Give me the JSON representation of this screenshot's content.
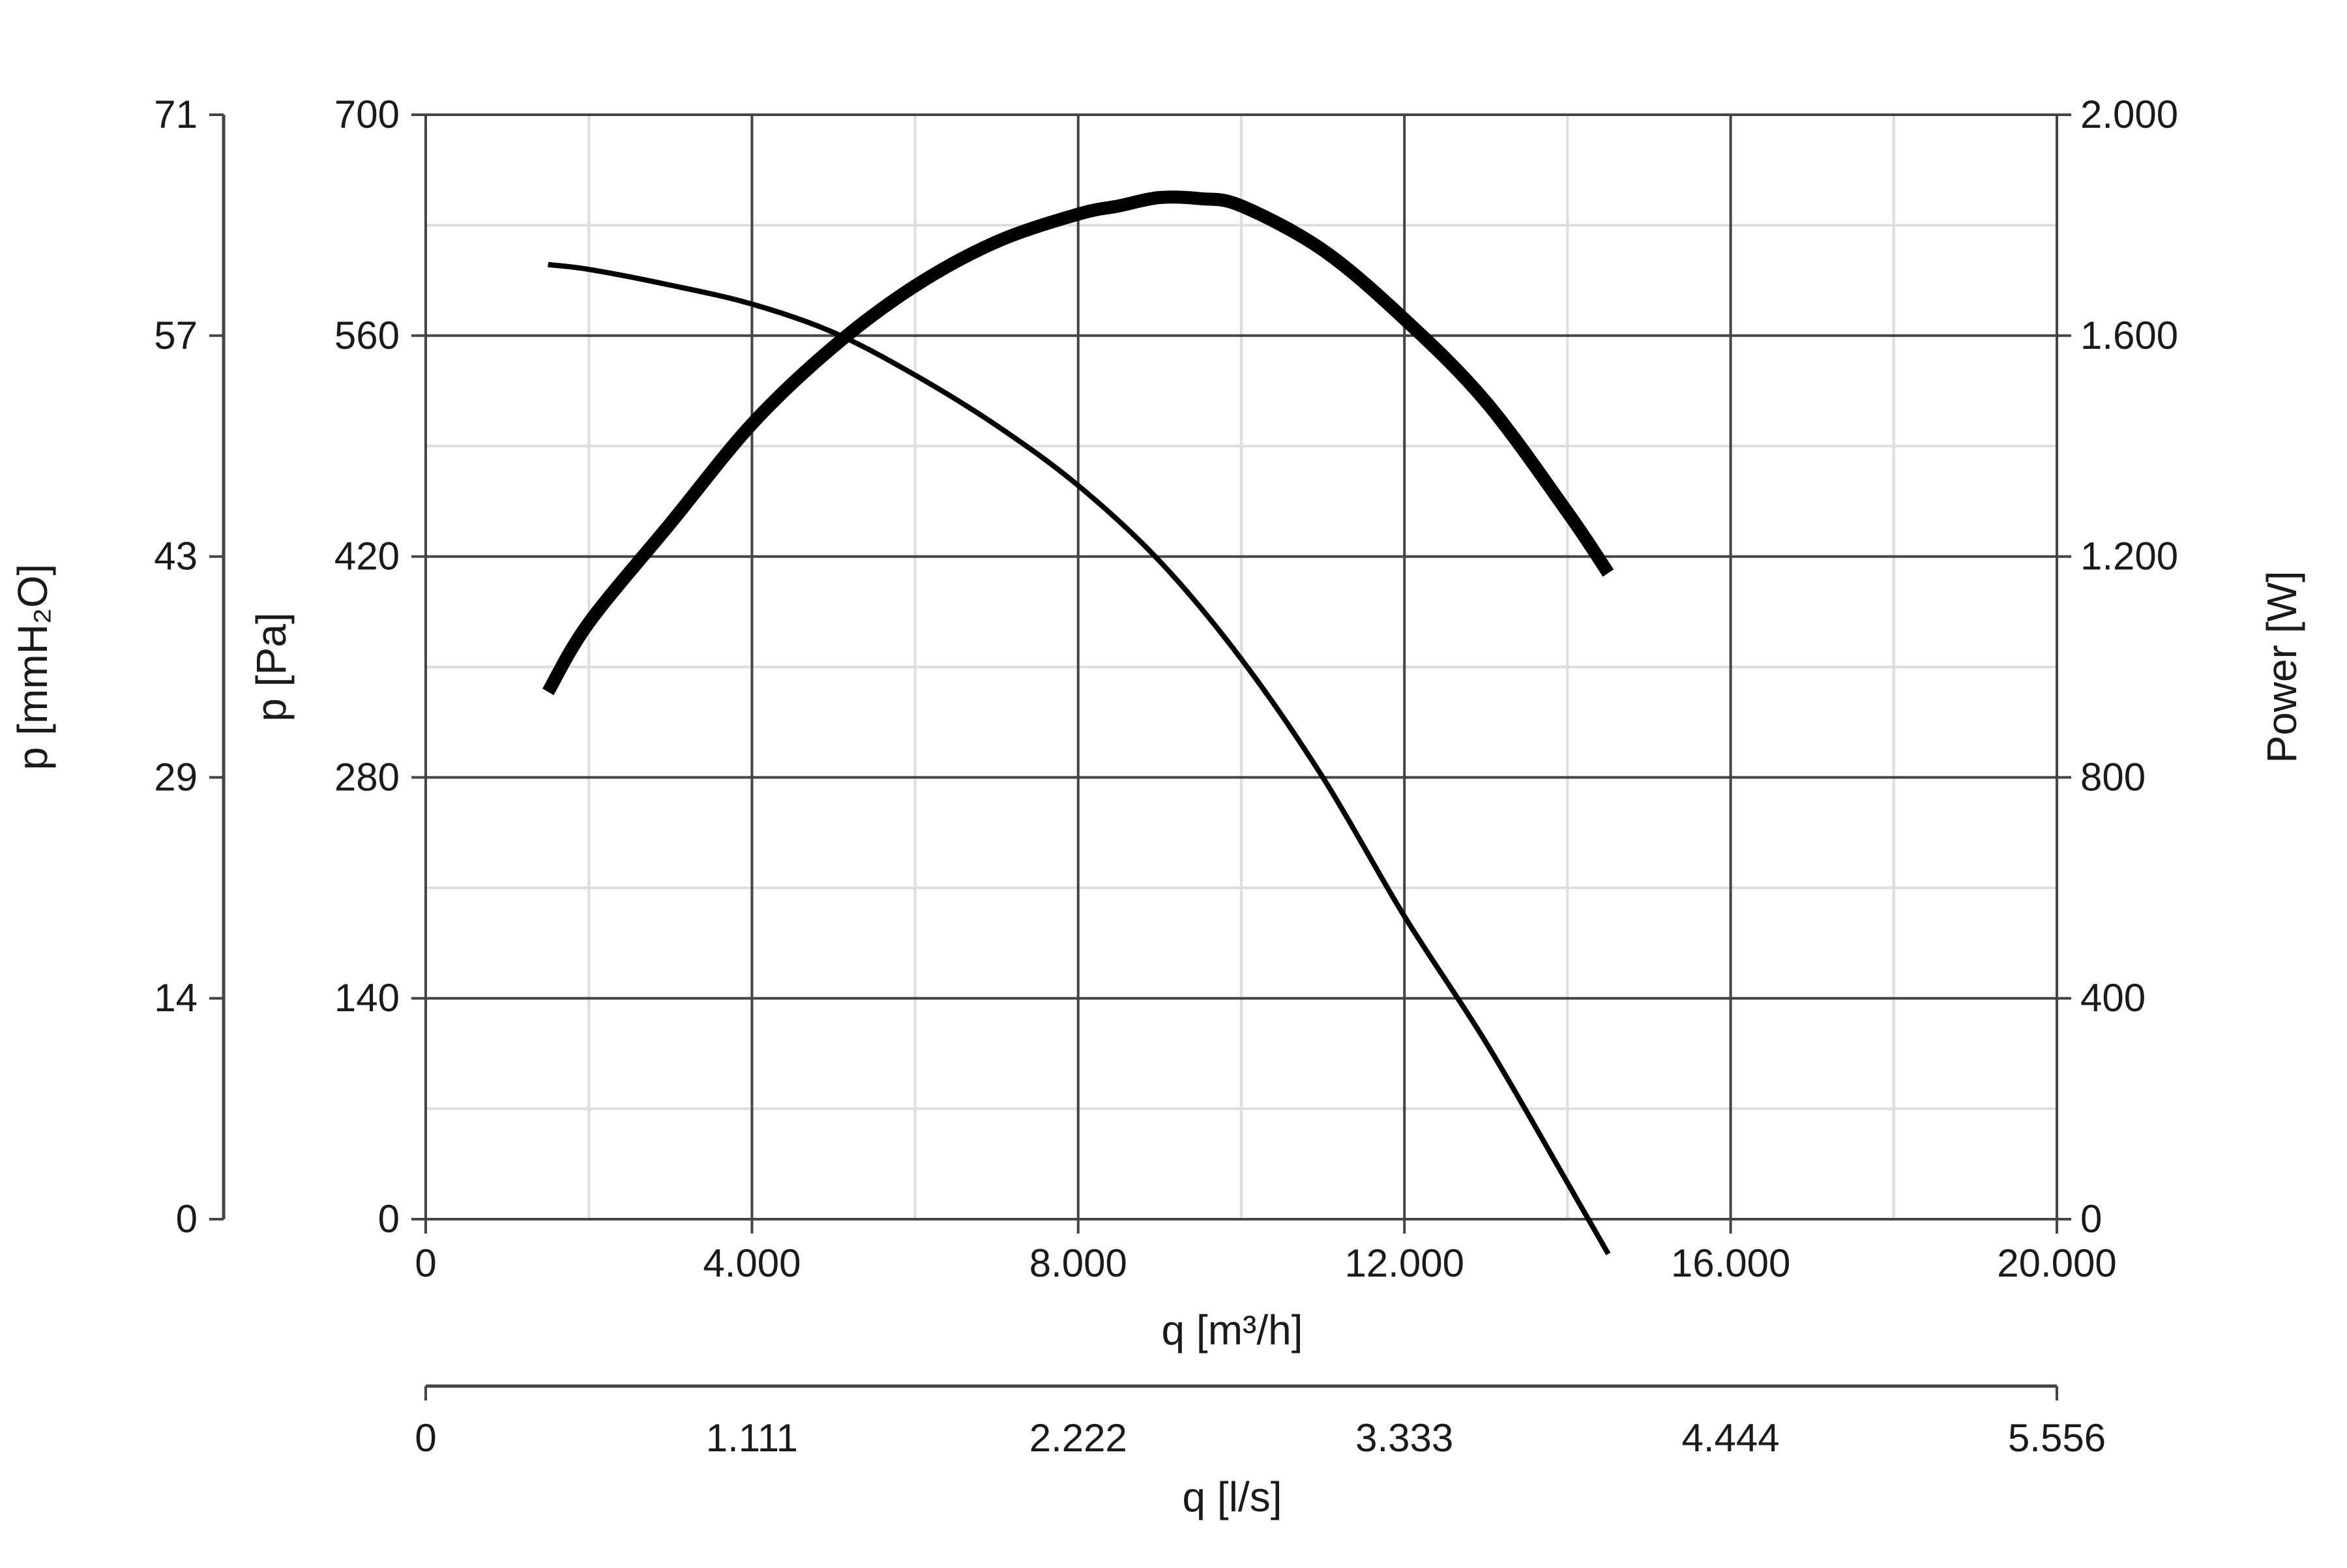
{
  "chart_data": {
    "type": "line",
    "x_axis_primary": {
      "label": "q [m³/h]",
      "range": [
        0,
        20000
      ],
      "ticks": [
        "0",
        "4.000",
        "8.000",
        "12.000",
        "16.000",
        "20.000"
      ],
      "tick_values": [
        0,
        4000,
        8000,
        12000,
        16000,
        20000
      ]
    },
    "x_axis_secondary": {
      "label": "q [l/s]",
      "ticks": [
        "0",
        "1.111",
        "2.222",
        "3.333",
        "4.444",
        "5.556"
      ],
      "tick_values": [
        0,
        1111,
        2222,
        3333,
        4444,
        5556
      ]
    },
    "y_axis_left": {
      "label": "p [Pa]",
      "range": [
        0,
        700
      ],
      "ticks": [
        "0",
        "140",
        "280",
        "420",
        "560",
        "700"
      ],
      "tick_values": [
        0,
        140,
        280,
        420,
        560,
        700
      ]
    },
    "y_axis_far_left": {
      "label": "p [mmH₂O]",
      "ticks": [
        "0",
        "14",
        "29",
        "43",
        "57",
        "71"
      ],
      "tick_values": [
        0,
        14,
        29,
        43,
        57,
        71
      ]
    },
    "y_axis_right": {
      "label": "Power [W]",
      "range": [
        0,
        2000
      ],
      "ticks": [
        "0",
        "400",
        "800",
        "1.200",
        "1.600",
        "2.000"
      ],
      "tick_values": [
        0,
        400,
        800,
        1200,
        1600,
        2000
      ]
    },
    "grid": true,
    "colors": {
      "line": "#000000",
      "grid_major": "#444444",
      "grid_minor": "#dddddd"
    },
    "series": [
      {
        "axis": "left",
        "width": "thin",
        "x": [
          1500,
          2000,
          3000,
          4000,
          5000,
          6000,
          7000,
          8000,
          9000,
          10000,
          11000,
          12000,
          13000,
          14000,
          14500
        ],
        "y": [
          605,
          602,
          592,
          580,
          562,
          535,
          503,
          465,
          417,
          355,
          280,
          192,
          112,
          23,
          -22
        ]
      },
      {
        "axis": "right",
        "width": "thick",
        "x": [
          1500,
          2000,
          3000,
          4000,
          5000,
          6000,
          7000,
          8000,
          8500,
          9000,
          9500,
          10000,
          11000,
          12000,
          13000,
          14000,
          14500
        ],
        "y": [
          955,
          1080,
          1260,
          1440,
          1580,
          1690,
          1770,
          1820,
          1835,
          1850,
          1848,
          1835,
          1755,
          1630,
          1480,
          1280,
          1170
        ]
      }
    ]
  }
}
